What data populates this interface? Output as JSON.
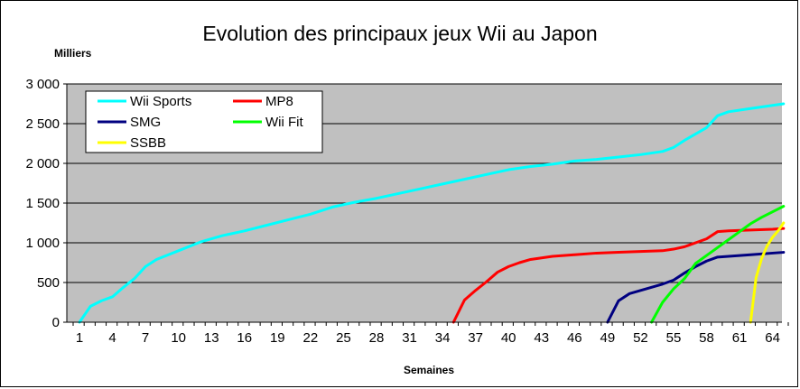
{
  "chart_data": {
    "type": "line",
    "title": "Evolution des principaux jeux Wii au Japon",
    "ylabel": "Milliers",
    "xlabel": "Semaines",
    "ylim": [
      0,
      3000
    ],
    "xlim": [
      1,
      66
    ],
    "y_ticks": [
      0,
      500,
      1000,
      1500,
      2000,
      2500,
      3000
    ],
    "y_tick_labels": [
      "0",
      "500",
      "1 000",
      "1 500",
      "2 000",
      "2 500",
      "3 000"
    ],
    "x_ticks": [
      1,
      4,
      7,
      10,
      13,
      16,
      19,
      22,
      25,
      28,
      31,
      34,
      37,
      40,
      43,
      46,
      49,
      52,
      55,
      58,
      61,
      64
    ],
    "x_tick_labels": [
      "1",
      "4",
      "7",
      "10",
      "13",
      "16",
      "19",
      "22",
      "25",
      "28",
      "31",
      "34",
      "37",
      "40",
      "43",
      "46",
      "49",
      "52",
      "55",
      "58",
      "61",
      "64"
    ],
    "grid": "horizontal",
    "legend": "top-left",
    "plot_background": "#c0c0c0",
    "series": [
      {
        "name": "Wii Sports",
        "color": "#00ffff",
        "x": [
          1,
          2,
          3,
          4,
          5,
          6,
          7,
          8,
          10,
          12,
          14,
          16,
          18,
          20,
          22,
          24,
          26,
          28,
          30,
          32,
          34,
          36,
          38,
          40,
          42,
          44,
          46,
          48,
          50,
          52,
          54,
          55,
          56,
          58,
          59,
          60,
          62,
          64,
          65
        ],
        "y": [
          0,
          200,
          270,
          320,
          440,
          550,
          700,
          790,
          900,
          1010,
          1090,
          1150,
          1220,
          1290,
          1360,
          1450,
          1510,
          1560,
          1620,
          1680,
          1740,
          1800,
          1860,
          1920,
          1960,
          1990,
          2030,
          2050,
          2080,
          2110,
          2150,
          2200,
          2290,
          2450,
          2600,
          2650,
          2690,
          2730,
          2750
        ]
      },
      {
        "name": "MP8",
        "color": "#ff0000",
        "x": [
          35,
          36,
          37,
          38,
          39,
          40,
          41,
          42,
          43,
          44,
          46,
          48,
          50,
          52,
          54,
          55,
          56,
          57,
          58,
          59,
          60,
          62,
          64,
          65
        ],
        "y": [
          0,
          280,
          400,
          510,
          630,
          700,
          750,
          790,
          810,
          830,
          850,
          870,
          880,
          890,
          900,
          920,
          950,
          1000,
          1050,
          1140,
          1150,
          1160,
          1170,
          1180
        ]
      },
      {
        "name": "SMG",
        "color": "#000080",
        "x": [
          49,
          50,
          51,
          52,
          53,
          54,
          55,
          56,
          57,
          58,
          59,
          60,
          62,
          64,
          65
        ],
        "y": [
          0,
          270,
          360,
          400,
          440,
          480,
          530,
          620,
          700,
          770,
          820,
          830,
          850,
          870,
          880
        ]
      },
      {
        "name": "Wii Fit",
        "color": "#00ff00",
        "x": [
          53,
          54,
          55,
          56,
          57,
          58,
          59,
          60,
          61,
          62,
          63,
          64,
          65
        ],
        "y": [
          0,
          250,
          420,
          550,
          740,
          840,
          940,
          1040,
          1140,
          1240,
          1320,
          1390,
          1460
        ]
      },
      {
        "name": "SSBB",
        "color": "#ffff00",
        "x": [
          62,
          62.5,
          63,
          63.5,
          64,
          64.5,
          65
        ],
        "y": [
          0,
          560,
          800,
          960,
          1070,
          1150,
          1250
        ]
      }
    ]
  }
}
